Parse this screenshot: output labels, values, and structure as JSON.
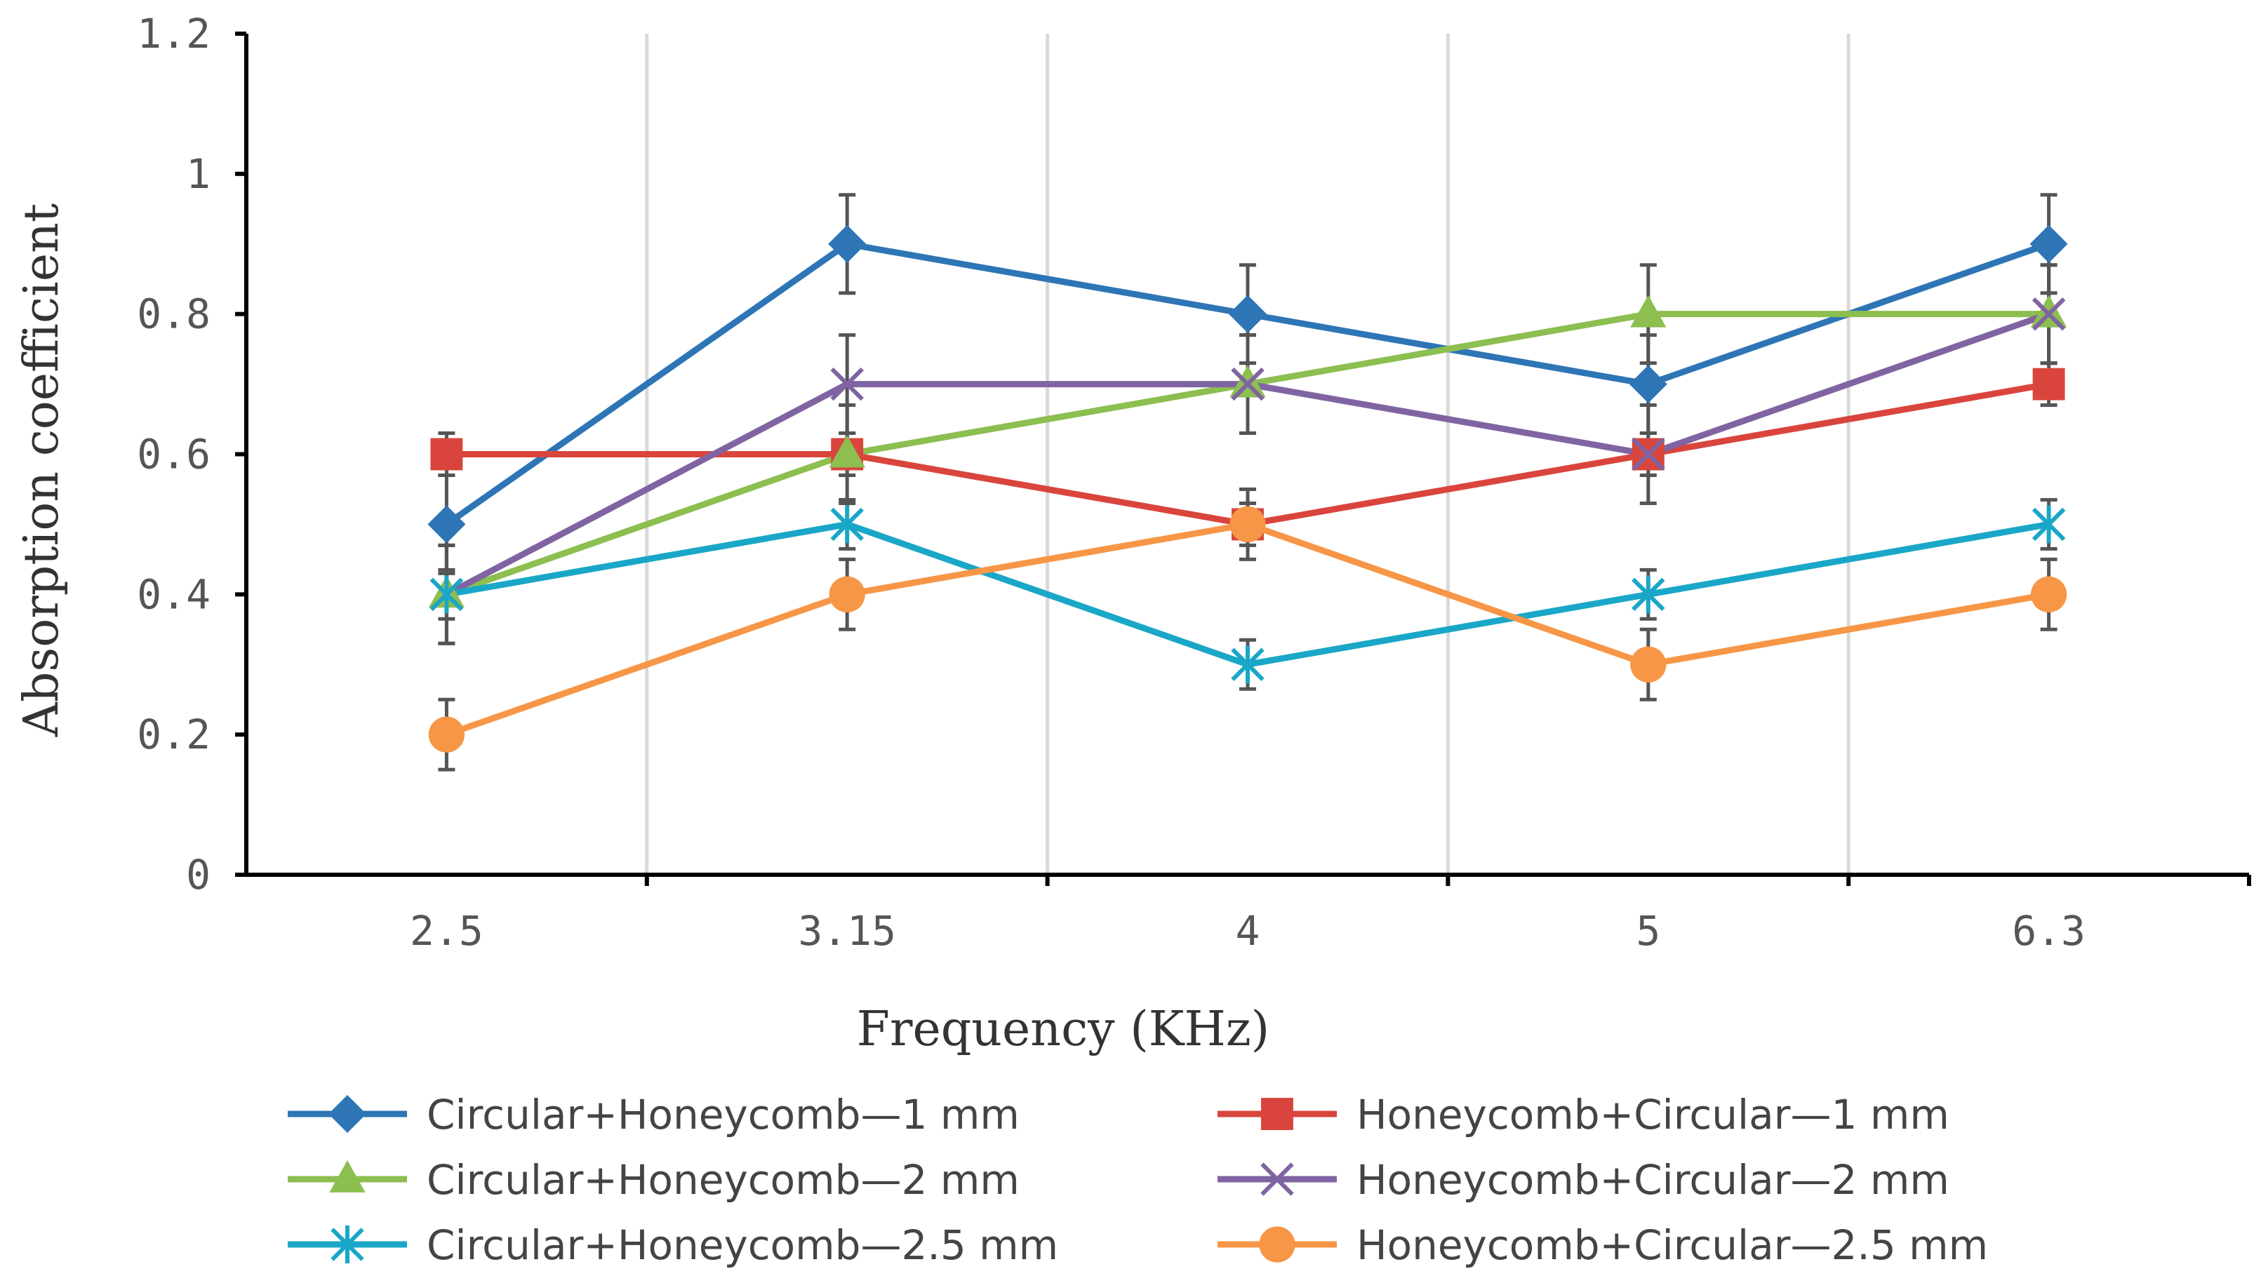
{
  "chart_data": {
    "type": "line",
    "title": "",
    "xlabel": "Frequency (KHz)",
    "ylabel": "Absorption coefficient",
    "categories": [
      "2.5",
      "3.15",
      "4",
      "5",
      "6.3"
    ],
    "y_ticks": [
      "0",
      "0.2",
      "0.4",
      "0.6",
      "0.8",
      "1",
      "1.2"
    ],
    "ylim": [
      0,
      1.2
    ],
    "grid": "vertical",
    "legend_position": "bottom",
    "series": [
      {
        "name": "Circular+Honeycomb—1 mm",
        "marker": "diamond",
        "color": "#2E75B6",
        "values": [
          0.5,
          0.9,
          0.8,
          0.7,
          0.9
        ],
        "errors": [
          0.07,
          0.07,
          0.07,
          0.07,
          0.07
        ]
      },
      {
        "name": "Honeycomb+Circular—1 mm",
        "marker": "square",
        "color": "#D9453D",
        "values": [
          0.6,
          0.6,
          0.5,
          0.6,
          0.7
        ],
        "errors": [
          0.03,
          0.03,
          0.03,
          0.03,
          0.03
        ]
      },
      {
        "name": "Circular+Honeycomb—2 mm",
        "marker": "triangle",
        "color": "#8CBE50",
        "values": [
          0.4,
          0.6,
          0.7,
          0.8,
          0.8
        ],
        "errors": [
          0.07,
          0.07,
          0.07,
          0.07,
          0.07
        ]
      },
      {
        "name": "Honeycomb+Circular—2 mm",
        "marker": "x",
        "color": "#8064A2",
        "values": [
          0.4,
          0.7,
          0.7,
          0.6,
          0.8
        ],
        "errors": [
          0.07,
          0.07,
          0.07,
          0.07,
          0.07
        ]
      },
      {
        "name": "Circular+Honeycomb—2.5 mm",
        "marker": "star",
        "color": "#1AA7C7",
        "values": [
          0.4,
          0.5,
          0.3,
          0.4,
          0.5
        ],
        "errors": [
          0.035,
          0.035,
          0.035,
          0.035,
          0.035
        ]
      },
      {
        "name": "Honeycomb+Circular—2.5 mm",
        "marker": "circle",
        "color": "#F79646",
        "values": [
          0.2,
          0.4,
          0.5,
          0.3,
          0.4
        ],
        "errors": [
          0.05,
          0.05,
          0.05,
          0.05,
          0.05
        ]
      }
    ]
  }
}
